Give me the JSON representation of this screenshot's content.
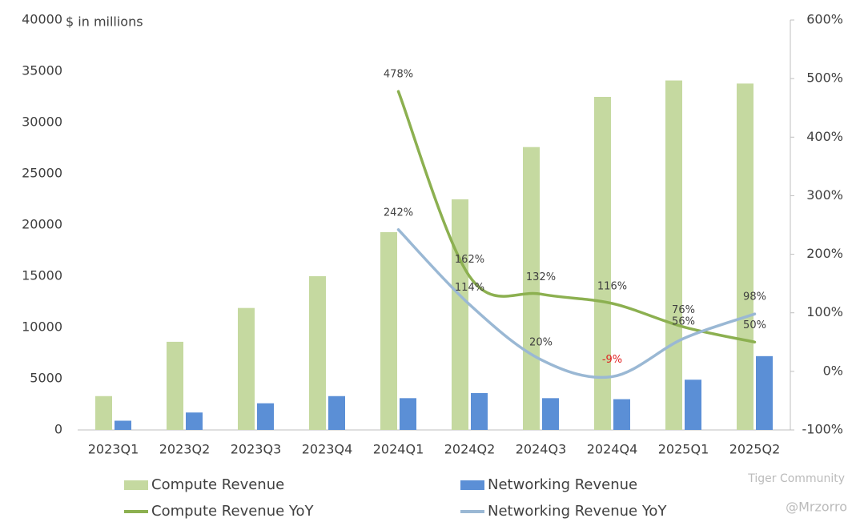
{
  "chart_data": {
    "type": "bar-line",
    "title": "$ in millions",
    "categories": [
      "2023Q1",
      "2023Q2",
      "2023Q3",
      "2023Q4",
      "2024Q1",
      "2024Q2",
      "2024Q3",
      "2024Q4",
      "2025Q1",
      "2025Q2"
    ],
    "series": [
      {
        "name": "Compute Revenue",
        "kind": "bar",
        "color": "#c5d9a0",
        "values": [
          3300,
          8600,
          11900,
          15000,
          19300,
          22500,
          27600,
          32500,
          34100,
          33800
        ]
      },
      {
        "name": "Networking Revenue",
        "kind": "bar",
        "color": "#5b8fd6",
        "values": [
          900,
          1700,
          2600,
          3300,
          3100,
          3600,
          3100,
          3000,
          4900,
          7200
        ]
      },
      {
        "name": "Compute Revenue YoY",
        "kind": "line",
        "axis": "y2",
        "color": "#8cb050",
        "values": [
          null,
          null,
          null,
          null,
          478,
          162,
          132,
          116,
          76,
          50
        ],
        "value_labels": [
          null,
          null,
          null,
          null,
          "478%",
          "162%",
          "132%",
          "116%",
          "76%",
          "50%"
        ]
      },
      {
        "name": "Networking Revenue YoY",
        "kind": "line",
        "axis": "y2",
        "color": "#9ab8d4",
        "values": [
          null,
          null,
          null,
          null,
          242,
          114,
          20,
          -9,
          56,
          98
        ],
        "value_labels": [
          null,
          null,
          null,
          null,
          "242%",
          "114%",
          "20%",
          "-9%",
          "56%",
          "98%"
        ]
      }
    ],
    "ylim": [
      0,
      40000
    ],
    "yticks": [
      0,
      5000,
      10000,
      15000,
      20000,
      25000,
      30000,
      35000,
      40000
    ],
    "y2lim": [
      -100,
      600
    ],
    "y2ticks": [
      {
        "value": -100,
        "label": "-100%"
      },
      {
        "value": 0,
        "label": "0%"
      },
      {
        "value": 100,
        "label": "100%"
      },
      {
        "value": 200,
        "label": "200%"
      },
      {
        "value": 300,
        "label": "300%"
      },
      {
        "value": 400,
        "label": "400%"
      },
      {
        "value": 500,
        "label": "500%"
      },
      {
        "value": 600,
        "label": "600%"
      }
    ],
    "negative_label_color": "#e02020",
    "watermark": [
      "Tiger Community",
      "@Mrzorro"
    ]
  }
}
